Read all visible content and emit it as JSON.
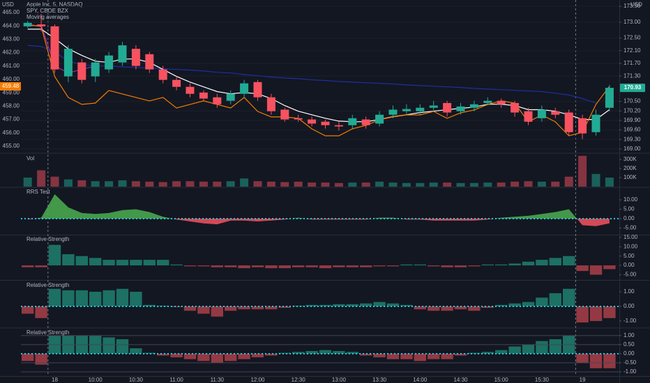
{
  "chart_data": [
    {
      "type": "candlestick",
      "title": "Apple Inc, 5, NASDAQ",
      "indicator_title": "Moving averages",
      "y_unit": "USD",
      "y2_unit": "USD",
      "up_color": "#22ab94",
      "down_color": "#f7525f",
      "grid": true,
      "categories": [
        null,
        null,
        "18",
        null,
        null,
        "10:00",
        null,
        null,
        "10:30",
        null,
        null,
        "11:00",
        null,
        null,
        "11:30",
        null,
        null,
        "12:00",
        null,
        null,
        "12:30",
        null,
        null,
        "13:00",
        null,
        null,
        "13:30",
        null,
        null,
        "14:00",
        null,
        null,
        "14:30",
        null,
        null,
        "15:00",
        null,
        null,
        "15:30",
        null,
        null,
        "19",
        null,
        null
      ],
      "open": [
        172.87,
        172.93,
        172.87,
        171.29,
        171.73,
        171.29,
        171.51,
        171.73,
        172.16,
        171.99,
        171.51,
        171.18,
        170.96,
        170.78,
        170.63,
        170.52,
        170.74,
        171.11,
        170.63,
        170.24,
        169.97,
        169.93,
        169.86,
        169.75,
        169.75,
        169.93,
        169.8,
        170.08,
        170.19,
        170.19,
        170.3,
        170.45,
        170.19,
        170.3,
        170.45,
        170.52,
        170.45,
        170.19,
        169.97,
        170.19,
        170.15,
        169.97,
        169.53,
        170.3
      ],
      "high": [
        173.04,
        173.26,
        172.93,
        172.27,
        171.84,
        171.84,
        172.06,
        172.38,
        172.27,
        172.06,
        171.62,
        171.29,
        171.07,
        170.85,
        170.74,
        170.85,
        171.18,
        171.18,
        170.74,
        170.3,
        170.08,
        170.02,
        169.93,
        169.86,
        170.08,
        170.02,
        170.19,
        170.37,
        170.41,
        170.41,
        170.52,
        170.52,
        170.45,
        170.52,
        170.63,
        170.59,
        170.52,
        170.3,
        170.37,
        170.3,
        170.24,
        170.08,
        170.24,
        171.02
      ],
      "low": [
        172.82,
        172.71,
        171.4,
        171.11,
        171.07,
        171.11,
        171.4,
        171.62,
        171.51,
        171.4,
        171.07,
        170.85,
        170.63,
        170.52,
        170.3,
        170.41,
        170.63,
        170.52,
        170.08,
        169.86,
        169.86,
        169.71,
        169.64,
        169.58,
        169.64,
        169.64,
        169.71,
        169.97,
        170.08,
        170.08,
        170.19,
        170.02,
        170.08,
        170.19,
        170.37,
        170.3,
        170.02,
        169.75,
        169.86,
        169.97,
        169.42,
        169.31,
        169.42,
        170.19
      ],
      "close": [
        172.98,
        172.87,
        171.51,
        172.16,
        171.18,
        171.73,
        171.95,
        172.27,
        171.62,
        171.51,
        171.18,
        170.96,
        170.74,
        170.59,
        170.41,
        170.74,
        171.07,
        170.63,
        170.19,
        169.93,
        169.93,
        169.8,
        169.75,
        169.71,
        169.97,
        169.75,
        170.08,
        170.24,
        170.26,
        170.3,
        170.37,
        170.15,
        170.34,
        170.41,
        170.52,
        170.41,
        170.15,
        169.86,
        170.24,
        170.08,
        169.53,
        169.49,
        170.08,
        170.93
      ],
      "lines": [
        {
          "color": "#1e2fa0",
          "values": [
            172.27,
            172.23,
            172.06,
            171.77,
            171.66,
            171.62,
            171.62,
            171.59,
            171.57,
            171.55,
            171.53,
            171.51,
            171.49,
            171.46,
            171.42,
            171.4,
            171.35,
            171.31,
            171.27,
            171.24,
            171.22,
            171.18,
            171.16,
            171.13,
            171.11,
            171.09,
            171.07,
            171.05,
            171.02,
            171.0,
            170.98,
            170.96,
            170.94,
            170.91,
            170.89,
            170.87,
            170.85,
            170.83,
            170.81,
            170.76,
            170.7,
            170.59,
            170.45,
            null
          ]
        },
        {
          "color": "#9c27b0",
          "values": [
            172.87,
            172.91,
            171.62,
            171.4,
            171.51,
            171.62,
            null,
            null,
            null,
            null,
            null,
            null,
            null,
            null,
            null,
            null,
            null,
            null,
            null,
            null,
            null,
            null,
            null,
            null,
            null,
            null,
            null,
            null,
            null,
            null,
            null,
            null,
            null,
            null,
            null,
            null,
            null,
            null,
            null,
            null,
            null,
            null,
            null,
            null
          ]
        },
        {
          "color": "#ffffff",
          "values": [
            172.78,
            172.78,
            172.49,
            172.16,
            171.95,
            171.77,
            171.73,
            171.84,
            171.84,
            171.73,
            171.51,
            171.29,
            171.11,
            170.96,
            170.81,
            170.74,
            170.78,
            170.74,
            170.59,
            170.37,
            170.19,
            170.08,
            169.97,
            169.88,
            169.86,
            169.86,
            169.93,
            170.02,
            170.08,
            170.15,
            170.19,
            170.24,
            170.28,
            170.32,
            170.41,
            170.41,
            170.37,
            170.24,
            170.24,
            170.19,
            170.08,
            169.93,
            169.93,
            170.24
          ]
        },
        {
          "name": "SPY, CBOE BZX",
          "color": "#f57c00",
          "axis": "y2",
          "values": [
            464.11,
            463.96,
            460.21,
            458.65,
            458.13,
            458.23,
            459.17,
            458.91,
            458.65,
            458.39,
            458.65,
            457.86,
            458.13,
            458.39,
            458.13,
            457.86,
            458.65,
            457.6,
            457.19,
            457.19,
            457.08,
            456.3,
            455.78,
            455.78,
            456.3,
            456.56,
            456.98,
            457.19,
            457.34,
            457.34,
            457.6,
            457.08,
            457.5,
            457.71,
            458.13,
            458.39,
            458.23,
            456.82,
            457.34,
            456.82,
            455.78,
            456.04,
            458.13,
            459.48
          ]
        }
      ],
      "ylim": [
        168.91,
        173.7
      ],
      "yticks": [
        {
          "value": 173.5,
          "label": "173.50"
        },
        {
          "value": 173,
          "label": "173.00"
        },
        {
          "value": 172.5,
          "label": "172.50"
        },
        {
          "value": 172.1,
          "label": "172.10"
        },
        {
          "value": 171.7,
          "label": "171.70"
        },
        {
          "value": 171.3,
          "label": "171.30"
        },
        {
          "value": 170.5,
          "label": "170.50"
        },
        {
          "value": 170.2,
          "label": "170.20"
        },
        {
          "value": 169.9,
          "label": "169.90"
        },
        {
          "value": 169.6,
          "label": "169.60"
        },
        {
          "value": 169.3,
          "label": "169.30"
        },
        {
          "value": 169,
          "label": "169.00"
        }
      ],
      "y2lim": [
        454.58,
        465.94
      ],
      "y2ticks": [
        {
          "value": 465,
          "label": "465.00"
        },
        {
          "value": 464,
          "label": "464.00"
        },
        {
          "value": 463,
          "label": "463.00"
        },
        {
          "value": 462,
          "label": "462.00"
        },
        {
          "value": 461,
          "label": "461.00"
        },
        {
          "value": 460,
          "label": "460.00"
        },
        {
          "value": 459,
          "label": "459.00"
        },
        {
          "value": 458,
          "label": "458.00"
        },
        {
          "value": 457,
          "label": "457.00"
        },
        {
          "value": 456,
          "label": "456.00"
        },
        {
          "value": 455,
          "label": "455.00"
        }
      ]
    },
    {
      "type": "volume",
      "title": "Vol",
      "ylim": [
        0,
        354000
      ],
      "yticks": [
        {
          "value": 300000,
          "label": "300K"
        },
        {
          "value": 200000,
          "label": "200K"
        },
        {
          "value": 100000,
          "label": "100K"
        }
      ],
      "values": [
        100000,
        180000,
        110000,
        80000,
        70000,
        60000,
        60000,
        70000,
        60000,
        55000,
        50000,
        60000,
        60000,
        55000,
        55000,
        60000,
        90000,
        60000,
        55000,
        50000,
        55000,
        45000,
        45000,
        40000,
        45000,
        45000,
        55000,
        45000,
        40000,
        40000,
        45000,
        45000,
        40000,
        40000,
        45000,
        45000,
        55000,
        60000,
        55000,
        55000,
        110000,
        340000,
        140000,
        100000
      ]
    },
    {
      "type": "area",
      "title": "RRS Test",
      "pos_color": "#4caf50",
      "neg_color": "#f7525f",
      "zero_line": "dotted",
      "ylim": [
        -8.9,
        16.3
      ],
      "yticks": [
        {
          "value": 10,
          "label": "10.00"
        },
        {
          "value": 5,
          "label": "5.00"
        },
        {
          "value": 0,
          "label": "0.00"
        },
        {
          "value": -5,
          "label": "-5.00"
        }
      ],
      "values": [
        -0.5,
        0.5,
        13,
        6,
        3,
        2.5,
        3,
        4.5,
        5,
        3.5,
        1,
        -0.5,
        -1.5,
        -2.5,
        -3,
        -1,
        -1,
        -1.5,
        -1,
        -0.5,
        0.5,
        -0.5,
        -0.5,
        -0.5,
        -0.5,
        -0.5,
        0.5,
        0.5,
        -0.5,
        -0.5,
        -1,
        -1,
        -1,
        -1,
        -0.5,
        0.5,
        1,
        1.5,
        2.5,
        3.5,
        5,
        -3.5,
        -4,
        -2.5
      ]
    },
    {
      "type": "bar",
      "title": "Relative Strength",
      "pos_color": "#1f7a6c",
      "neg_color": "#a33d47",
      "ylim": [
        -7.8,
        16.1
      ],
      "yticks": [
        {
          "value": 15,
          "label": "15.00"
        },
        {
          "value": 10,
          "label": "10.00"
        },
        {
          "value": 5,
          "label": "5.00"
        },
        {
          "value": 0,
          "label": "0.00"
        },
        {
          "value": -5,
          "label": "-5.00"
        }
      ],
      "values": [
        -1,
        -1,
        11,
        6,
        5,
        4,
        3,
        3,
        3,
        3,
        3,
        0.5,
        -0.5,
        -0.5,
        -1,
        -1,
        -1.5,
        -1,
        -1.5,
        -1.5,
        -1,
        -1,
        -1.5,
        -1,
        -1,
        -1,
        -0.5,
        -0.5,
        0.5,
        0.5,
        -0.5,
        -1,
        -1,
        -0.5,
        0.5,
        0.5,
        1,
        2,
        3,
        4,
        5,
        -3,
        -5,
        -2
      ]
    },
    {
      "type": "bar",
      "title": "Relative Strength",
      "pos_color": "#1f7a6c",
      "neg_color": "#a33d47",
      "zero_line": "dotted",
      "ylim": [
        -1.43,
        1.76
      ],
      "yticks": [
        {
          "value": 1,
          "label": "1.00"
        },
        {
          "value": 0,
          "label": "0.00"
        },
        {
          "value": -1,
          "label": "-1.00"
        }
      ],
      "values": [
        -0.5,
        -0.8,
        1.2,
        1.1,
        1.1,
        1,
        1.1,
        1.2,
        1,
        0.1,
        0.05,
        -0.05,
        -0.3,
        -0.5,
        -0.7,
        -0.3,
        -0.2,
        -0.2,
        -0.2,
        -0.1,
        0.05,
        0.1,
        0.1,
        0.15,
        0.15,
        0.2,
        0.3,
        0.2,
        0.1,
        -0.2,
        -0.3,
        -0.3,
        -0.2,
        -0.3,
        -0.1,
        0.1,
        0.2,
        0.3,
        0.6,
        0.9,
        1.2,
        -1.1,
        -1,
        -0.8
      ]
    },
    {
      "type": "bar",
      "title": "Relative Strength",
      "pos_color": "#1f7a6c",
      "neg_color": "#a33d47",
      "zero_line": "dotted",
      "grid": true,
      "ylim": [
        -1.23,
        1.38
      ],
      "yticks": [
        {
          "value": 1,
          "label": "1.00"
        },
        {
          "value": 0.5,
          "label": "0.50"
        },
        {
          "value": 0,
          "label": "0.00"
        },
        {
          "value": -0.5,
          "label": "-0.50"
        },
        {
          "value": -1,
          "label": "-1.00"
        }
      ],
      "values": [
        -0.4,
        -0.6,
        1,
        1,
        1,
        1,
        0.9,
        0.8,
        0.3,
        0.05,
        -0.1,
        -0.2,
        -0.3,
        -0.4,
        -0.5,
        -0.4,
        -0.3,
        -0.2,
        -0.1,
        0.05,
        0.1,
        0.15,
        0.2,
        0.15,
        0.1,
        -0.1,
        -0.2,
        -0.3,
        -0.3,
        -0.4,
        -0.3,
        -0.3,
        -0.1,
        0.05,
        0.1,
        0.2,
        0.4,
        0.5,
        0.7,
        0.8,
        1,
        -0.5,
        -0.8,
        -0.8
      ]
    }
  ]
}
